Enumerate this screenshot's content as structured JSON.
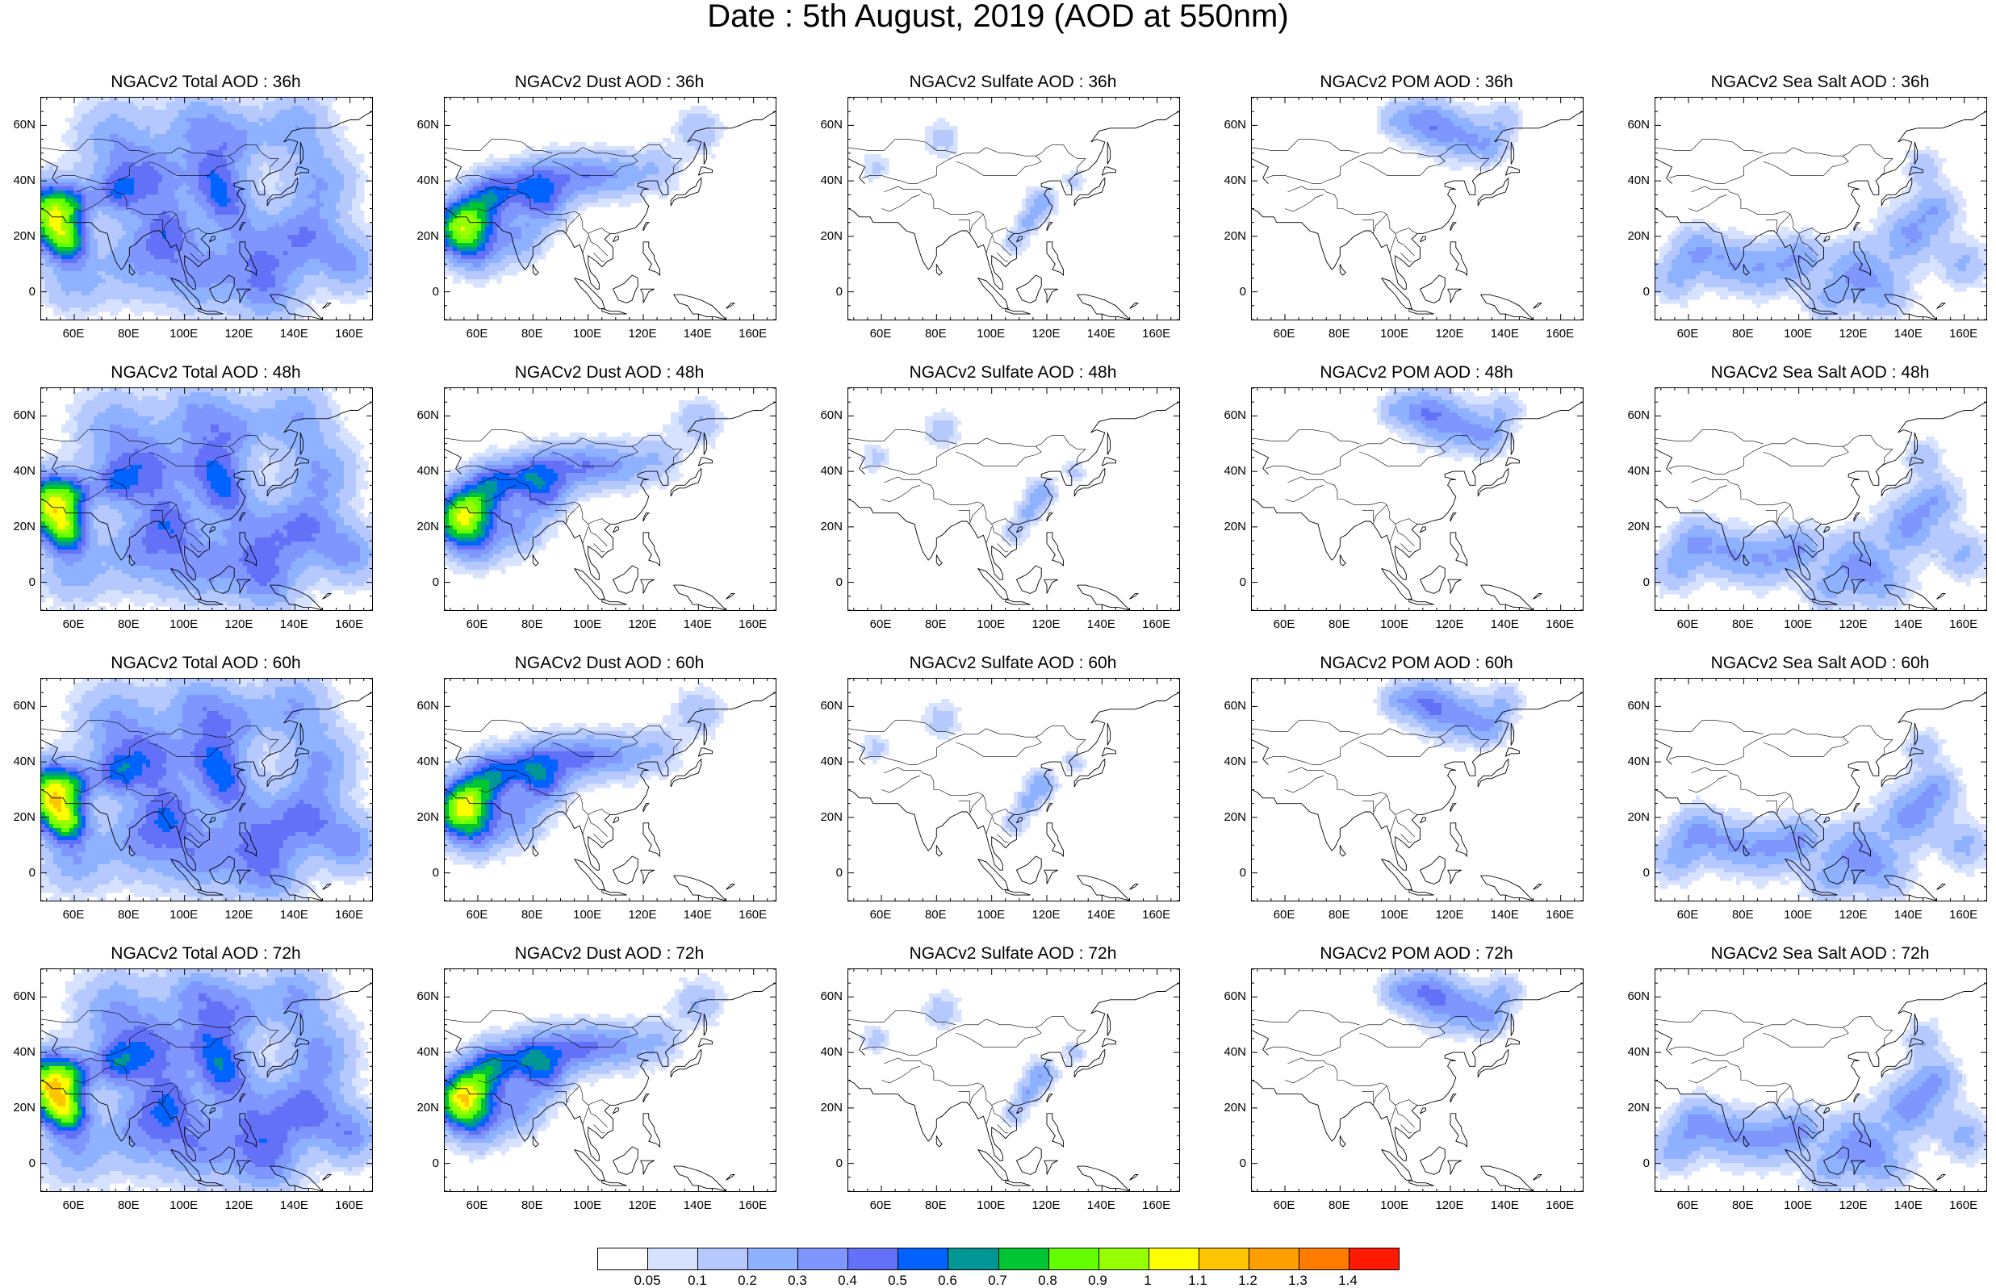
{
  "title": "Date : 5th August, 2019 (AOD at 550nm)",
  "y_ticks": [
    "60N",
    "40N",
    "20N",
    "0"
  ],
  "x_ticks": [
    "60E",
    "80E",
    "100E",
    "120E",
    "140E",
    "160E"
  ],
  "panels": [
    {
      "title": "NGACv2 Total AOD : 36h",
      "species": "total"
    },
    {
      "title": "NGACv2 Dust AOD : 36h",
      "species": "dust"
    },
    {
      "title": "NGACv2 Sulfate AOD : 36h",
      "species": "sulfate"
    },
    {
      "title": "NGACv2 POM AOD : 36h",
      "species": "pom"
    },
    {
      "title": "NGACv2 Sea Salt AOD : 36h",
      "species": "seasalt"
    },
    {
      "title": "NGACv2 Total AOD : 48h",
      "species": "total"
    },
    {
      "title": "NGACv2 Dust AOD : 48h",
      "species": "dust"
    },
    {
      "title": "NGACv2 Sulfate AOD : 48h",
      "species": "sulfate"
    },
    {
      "title": "NGACv2 POM AOD : 48h",
      "species": "pom"
    },
    {
      "title": "NGACv2 Sea Salt AOD : 48h",
      "species": "seasalt"
    },
    {
      "title": "NGACv2 Total AOD : 60h",
      "species": "total"
    },
    {
      "title": "NGACv2 Dust AOD : 60h",
      "species": "dust"
    },
    {
      "title": "NGACv2 Sulfate AOD : 60h",
      "species": "sulfate"
    },
    {
      "title": "NGACv2 POM AOD : 60h",
      "species": "pom"
    },
    {
      "title": "NGACv2 Sea Salt AOD : 60h",
      "species": "seasalt"
    },
    {
      "title": "NGACv2 Total AOD : 72h",
      "species": "total"
    },
    {
      "title": "NGACv2 Dust AOD : 72h",
      "species": "dust"
    },
    {
      "title": "NGACv2 Sulfate AOD : 72h",
      "species": "sulfate"
    },
    {
      "title": "NGACv2 POM AOD : 72h",
      "species": "pom"
    },
    {
      "title": "NGACv2 Sea Salt  AOD : 72h",
      "species": "seasalt"
    }
  ],
  "colorbar": {
    "labels": [
      "0.05",
      "0.1",
      "0.2",
      "0.3",
      "0.4",
      "0.5",
      "0.6",
      "0.7",
      "0.8",
      "0.9",
      "1",
      "1.1",
      "1.2",
      "1.3",
      "1.4"
    ],
    "colors": [
      "#ffffff",
      "#d6e2ff",
      "#b5c9ff",
      "#8eb2ff",
      "#7f96ff",
      "#6370f8",
      "#0063ff",
      "#009696",
      "#00c633",
      "#63ff00",
      "#96ff00",
      "#ffff00",
      "#ffc600",
      "#ffa000",
      "#ff7c00",
      "#ff1900"
    ]
  }
}
